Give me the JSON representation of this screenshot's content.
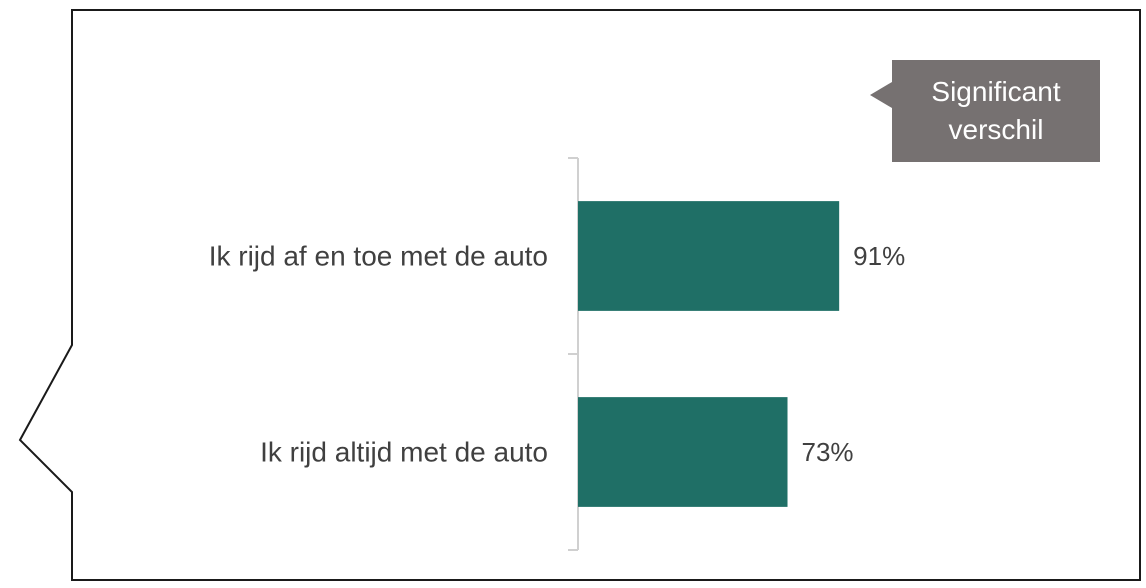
{
  "chart_data": {
    "type": "bar",
    "orientation": "horizontal",
    "categories": [
      "Ik rijd af en toe met de auto",
      "Ik rijd altijd met de auto"
    ],
    "values": [
      91,
      73
    ],
    "value_labels": [
      "91%",
      "73%"
    ],
    "color": "#1f6f66",
    "xlim": [
      0,
      100
    ],
    "annotation": "Significant verschil"
  }
}
